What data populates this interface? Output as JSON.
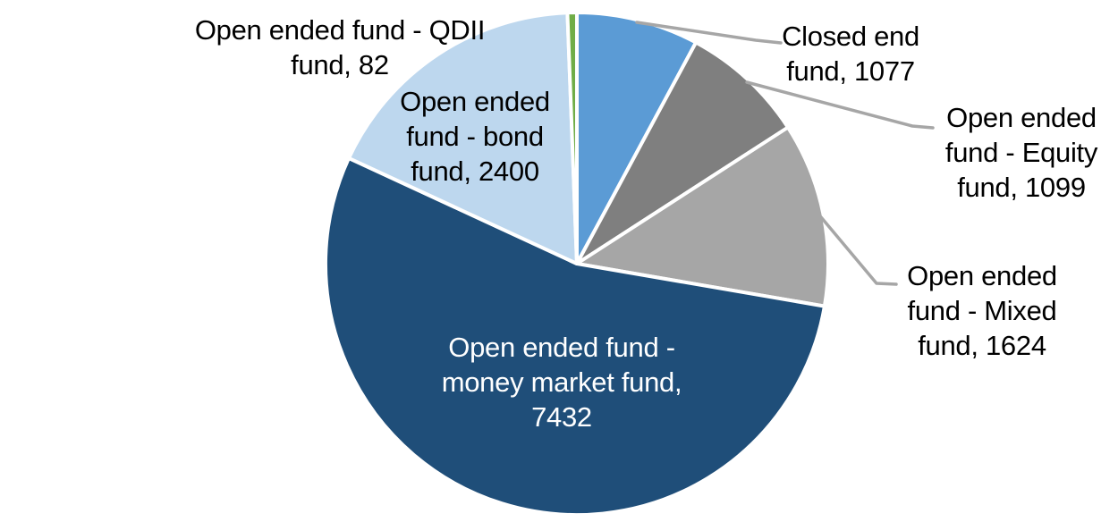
{
  "chart_data": {
    "type": "pie",
    "title": "",
    "legend": "none",
    "data_labels": "category name, value",
    "total": 13714,
    "start_angle_deg": 0,
    "direction": "clockwise",
    "background_color": "#FFFFFF",
    "separator_color": "#FFFFFF",
    "leader_line_color": "#A6A6A6",
    "slices": [
      {
        "name": "Closed end fund",
        "value": 1077,
        "color": "#5B9BD5",
        "label": "Closed end\nfund, 1077",
        "label_color": "#000000",
        "label_position": "outside"
      },
      {
        "name": "Open ended fund - Equity fund",
        "value": 1099,
        "color": "#7F7F7F",
        "label": "Open ended\nfund - Equity\nfund, 1099",
        "label_color": "#000000",
        "label_position": "outside"
      },
      {
        "name": "Open ended fund - Mixed fund",
        "value": 1624,
        "color": "#A6A6A6",
        "label": "Open ended\nfund - Mixed\nfund, 1624",
        "label_color": "#000000",
        "label_position": "outside"
      },
      {
        "name": "Open ended fund - money market fund",
        "value": 7432,
        "color": "#1F4E79",
        "label": "Open ended fund -\nmoney market fund,\n7432",
        "label_color": "#FFFFFF",
        "label_position": "inside"
      },
      {
        "name": "Open ended fund - bond fund",
        "value": 2400,
        "color": "#BDD7EE",
        "label": "Open ended\nfund - bond\nfund, 2400",
        "label_color": "#000000",
        "label_position": "inside"
      },
      {
        "name": "Open ended fund - QDII fund",
        "value": 82,
        "color": "#70AD47",
        "label": "Open ended fund - QDII\nfund, 82",
        "label_color": "#000000",
        "label_position": "outside"
      }
    ]
  }
}
